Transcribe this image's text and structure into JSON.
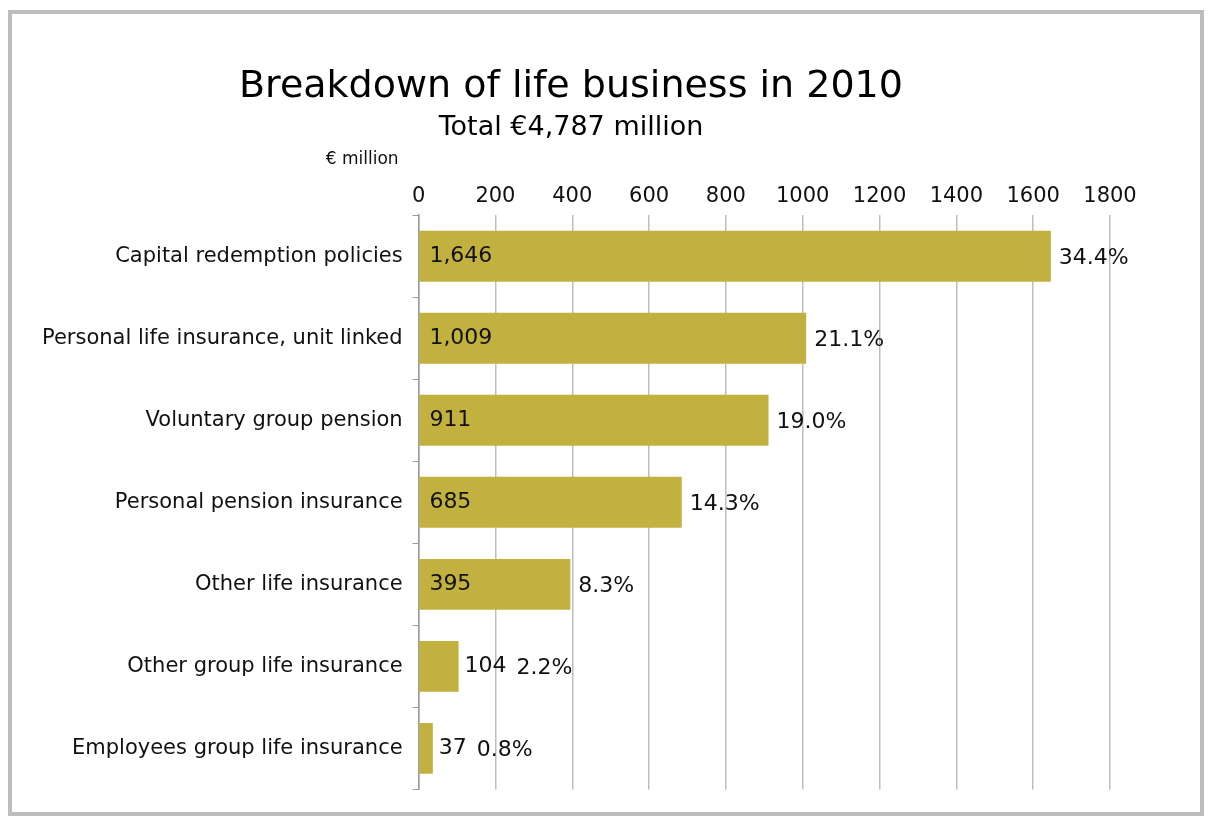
{
  "chart_data": {
    "type": "bar",
    "orientation": "horizontal",
    "title": "Breakdown of life business in 2010",
    "subtitle": "Total €4,787 million",
    "xlabel": "€ million",
    "categories": [
      "Capital redemption policies",
      "Personal life insurance, unit linked",
      "Voluntary group pension",
      "Personal pension insurance",
      "Other life insurance",
      "Other group life insurance",
      "Employees group life insurance"
    ],
    "values": [
      1646,
      1009,
      911,
      685,
      395,
      104,
      37
    ],
    "value_labels": [
      "1,646",
      "1,009",
      "911",
      "685",
      "395",
      "104",
      "37"
    ],
    "color": "#c2b13e",
    "xlim": [
      0,
      1800
    ],
    "xticks": [
      0,
      200,
      400,
      600,
      800,
      1000,
      1200,
      1400,
      1600,
      1800
    ],
    "grid": "x",
    "legend": false,
    "annotations": [
      {
        "text": "34.4%",
        "x": 1646,
        "y": "Capital redemption policies"
      },
      {
        "text": "21.1%",
        "x": 1009,
        "y": "Personal life insurance, unit linked"
      },
      {
        "text": "19.0%",
        "x": 911,
        "y": "Voluntary group pension"
      },
      {
        "text": "14.3%",
        "x": 685,
        "y": "Personal pension insurance"
      },
      {
        "text": "8.3%",
        "x": 395,
        "y": "Other life insurance"
      },
      {
        "text": "2.2%",
        "x": 104,
        "y": "Other group life insurance"
      },
      {
        "text": "0.8%",
        "x": 37,
        "y": "Employees group life insurance"
      }
    ]
  }
}
